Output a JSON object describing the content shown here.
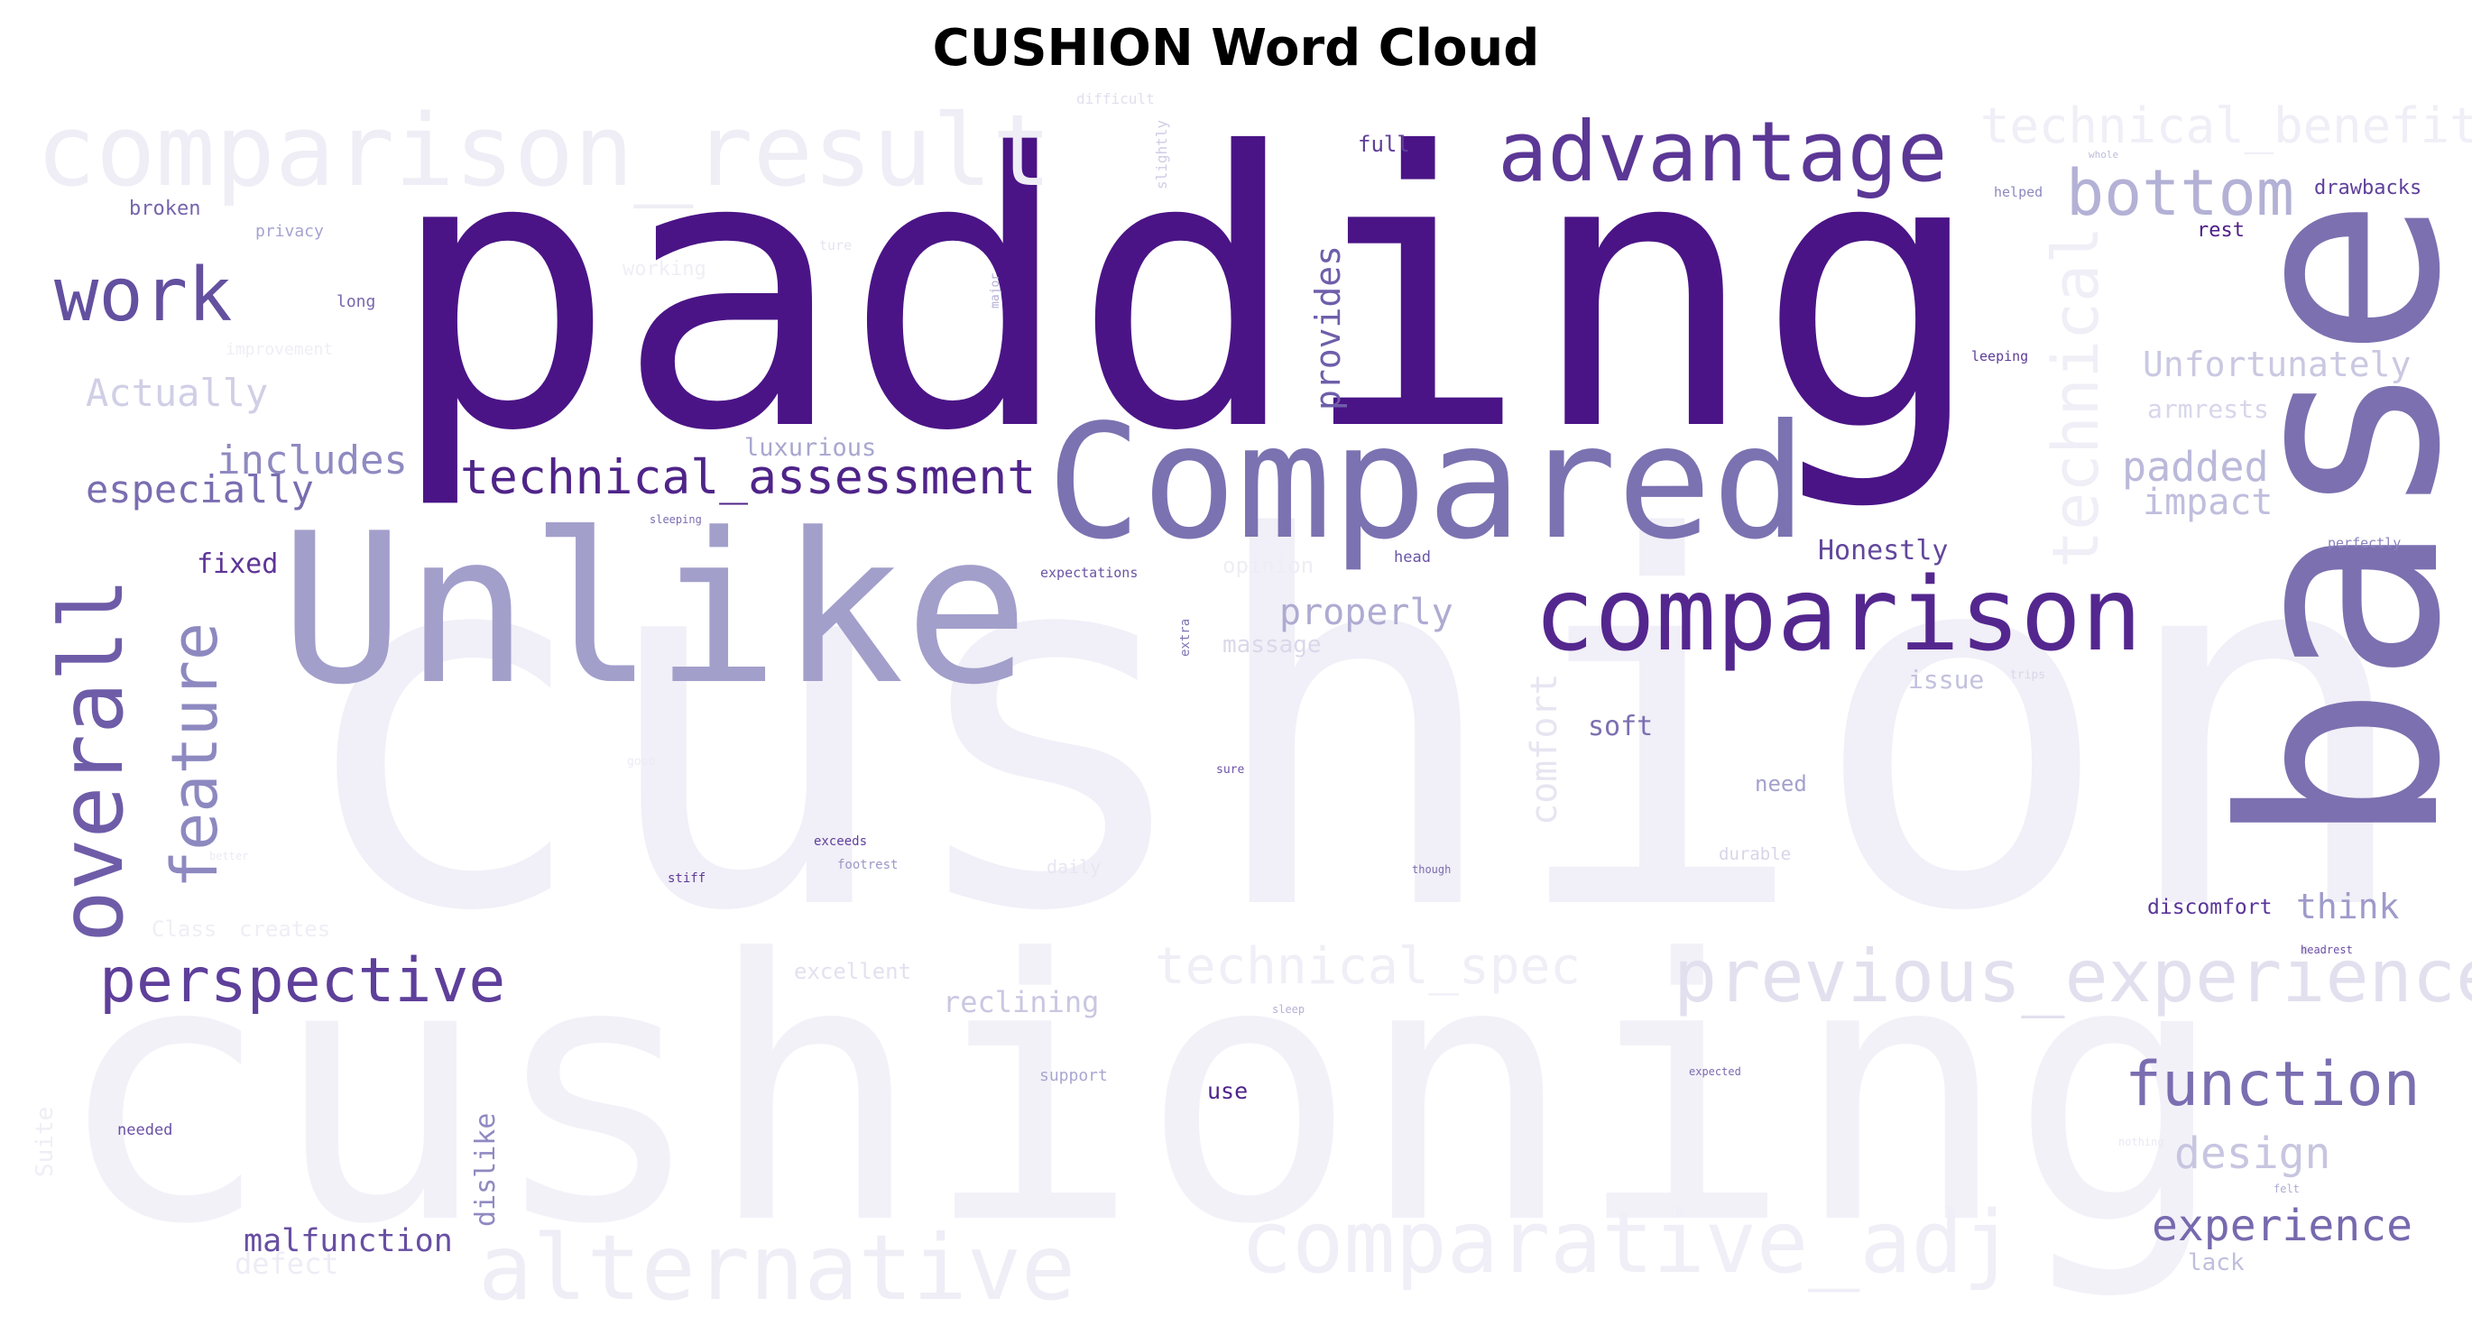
{
  "chart_data": {
    "type": "wordcloud",
    "title": "CUSHION Word Cloud",
    "colormap": "Purples",
    "background": "#ffffff",
    "words": [
      {
        "text": "cushion",
        "weight": 1.0,
        "color": "#f1eff7"
      },
      {
        "text": "cushioning",
        "weight": 0.95,
        "color": "#f3f1f8"
      },
      {
        "text": "padding",
        "weight": 0.9,
        "color": "#4a1486"
      },
      {
        "text": "base",
        "weight": 0.82,
        "color": "#7c70b0"
      },
      {
        "text": "Unlike",
        "weight": 0.62,
        "color": "#a29fcb"
      },
      {
        "text": "Compared",
        "weight": 0.5,
        "color": "#7b72b1"
      },
      {
        "text": "comparison",
        "weight": 0.45,
        "color": "#54278f"
      },
      {
        "text": "comparison_result",
        "weight": 0.42,
        "color": "#efedf5"
      },
      {
        "text": "advantage",
        "weight": 0.38,
        "color": "#5b3796"
      },
      {
        "text": "alternative",
        "weight": 0.34,
        "color": "#efedf5"
      },
      {
        "text": "comparative_adj",
        "weight": 0.32,
        "color": "#f0eef6"
      },
      {
        "text": "technical_benefit",
        "weight": 0.28,
        "color": "#f0eef6"
      },
      {
        "text": "previous_experience",
        "weight": 0.27,
        "color": "#e2e0ee"
      },
      {
        "text": "technical_spec",
        "weight": 0.24,
        "color": "#f0eef6"
      },
      {
        "text": "overall",
        "weight": 0.3,
        "color": "#6e5ca8"
      },
      {
        "text": "feature",
        "weight": 0.26,
        "color": "#8d89c0"
      },
      {
        "text": "technical",
        "weight": 0.24,
        "color": "#f0eef6"
      },
      {
        "text": "work",
        "weight": 0.26,
        "color": "#63509f"
      },
      {
        "text": "bottom",
        "weight": 0.25,
        "color": "#b3b1d5"
      },
      {
        "text": "function",
        "weight": 0.24,
        "color": "#7a6eb1"
      },
      {
        "text": "perspective",
        "weight": 0.24,
        "color": "#5e3f9a"
      },
      {
        "text": "technical_assessment",
        "weight": 0.22,
        "color": "#4f2489"
      },
      {
        "text": "experience",
        "weight": 0.2,
        "color": "#7769ae"
      },
      {
        "text": "design",
        "weight": 0.2,
        "color": "#c7c5e0"
      },
      {
        "text": "padded",
        "weight": 0.19,
        "color": "#bbb9da"
      },
      {
        "text": "impact",
        "weight": 0.18,
        "color": "#c0bedd"
      },
      {
        "text": "Unfortunately",
        "weight": 0.17,
        "color": "#cac8e1"
      },
      {
        "text": "Actually",
        "weight": 0.17,
        "color": "#d0cfe6"
      },
      {
        "text": "includes",
        "weight": 0.17,
        "color": "#8f8ac1"
      },
      {
        "text": "especially",
        "weight": 0.16,
        "color": "#7a6db0"
      },
      {
        "text": "comfort",
        "weight": 0.16,
        "color": "#e7e5f1"
      },
      {
        "text": "provides",
        "weight": 0.16,
        "color": "#6f5eaa"
      },
      {
        "text": "properly",
        "weight": 0.16,
        "color": "#aeabd2"
      },
      {
        "text": "think",
        "weight": 0.15,
        "color": "#9e9bca"
      },
      {
        "text": "reclining",
        "weight": 0.14,
        "color": "#c9c7e1"
      },
      {
        "text": "malfunction",
        "weight": 0.14,
        "color": "#674fa2"
      },
      {
        "text": "defect",
        "weight": 0.13,
        "color": "#eeecf5"
      },
      {
        "text": "luxurious",
        "weight": 0.12,
        "color": "#a8a6cf"
      },
      {
        "text": "armrests",
        "weight": 0.12,
        "color": "#d8d6ea"
      },
      {
        "text": "soft",
        "weight": 0.12,
        "color": "#7c6fb0"
      },
      {
        "text": "Honestly",
        "weight": 0.12,
        "color": "#62479c"
      },
      {
        "text": "dislike",
        "weight": 0.11,
        "color": "#8f8ac1"
      },
      {
        "text": "fixed",
        "weight": 0.11,
        "color": "#5d3597"
      },
      {
        "text": "issue",
        "weight": 0.11,
        "color": "#c3c1de"
      },
      {
        "text": "massage",
        "weight": 0.1,
        "color": "#dad8ea"
      },
      {
        "text": "opinion",
        "weight": 0.1,
        "color": "#eeedf5"
      },
      {
        "text": "need",
        "weight": 0.1,
        "color": "#a4a1cd"
      },
      {
        "text": "discomfort",
        "weight": 0.1,
        "color": "#59359a"
      },
      {
        "text": "lack",
        "weight": 0.1,
        "color": "#c0bedd"
      },
      {
        "text": "full",
        "weight": 0.1,
        "color": "#5e3e9a"
      },
      {
        "text": "rest",
        "weight": 0.1,
        "color": "#4d1e86"
      },
      {
        "text": "drawbacks",
        "weight": 0.1,
        "color": "#5f409b"
      },
      {
        "text": "use",
        "weight": 0.1,
        "color": "#4f2489"
      },
      {
        "text": "excellent",
        "weight": 0.09,
        "color": "#e3e1f0"
      },
      {
        "text": "broken",
        "weight": 0.09,
        "color": "#7564ab"
      },
      {
        "text": "Class",
        "weight": 0.09,
        "color": "#efeef6"
      },
      {
        "text": "creates",
        "weight": 0.09,
        "color": "#efeef6"
      },
      {
        "text": "Suite",
        "weight": 0.09,
        "color": "#efeef6"
      },
      {
        "text": "durable",
        "weight": 0.08,
        "color": "#d7d5e9"
      },
      {
        "text": "daily",
        "weight": 0.08,
        "color": "#e8e6f2"
      },
      {
        "text": "working",
        "weight": 0.08,
        "color": "#efeef6"
      },
      {
        "text": "improvement",
        "weight": 0.07,
        "color": "#efeef6"
      },
      {
        "text": "long",
        "weight": 0.07,
        "color": "#7866ad"
      },
      {
        "text": "privacy",
        "weight": 0.07,
        "color": "#a6a3cf"
      },
      {
        "text": "slightly",
        "weight": 0.07,
        "color": "#cfcde5"
      },
      {
        "text": "difficult",
        "weight": 0.07,
        "color": "#e1dfee"
      },
      {
        "text": "ture",
        "weight": 0.07,
        "color": "#e6e4f1"
      },
      {
        "text": "support",
        "weight": 0.07,
        "color": "#a9a6d0"
      },
      {
        "text": "needed",
        "weight": 0.07,
        "color": "#6a50a3"
      },
      {
        "text": "major",
        "weight": 0.06,
        "color": "#b3b0d5"
      },
      {
        "text": "expectations",
        "weight": 0.06,
        "color": "#6a53a4"
      },
      {
        "text": "helped",
        "weight": 0.06,
        "color": "#8d88bf"
      },
      {
        "text": "leeping",
        "weight": 0.06,
        "color": "#5d3d99"
      },
      {
        "text": "perfectly",
        "weight": 0.06,
        "color": "#8a83bd"
      },
      {
        "text": "head",
        "weight": 0.06,
        "color": "#6b55a5"
      },
      {
        "text": "extra",
        "weight": 0.06,
        "color": "#8075b4"
      },
      {
        "text": "sleeping",
        "weight": 0.05,
        "color": "#7c6db0"
      },
      {
        "text": "exceeds",
        "weight": 0.05,
        "color": "#5e3f9b"
      },
      {
        "text": "footrest",
        "weight": 0.05,
        "color": "#9c98c8"
      },
      {
        "text": "stiff",
        "weight": 0.05,
        "color": "#5c3a98"
      },
      {
        "text": "sure",
        "weight": 0.05,
        "color": "#6c53a4"
      },
      {
        "text": "though",
        "weight": 0.05,
        "color": "#7c6cb0"
      },
      {
        "text": "headrest",
        "weight": 0.05,
        "color": "#6b4fa3"
      },
      {
        "text": "expected",
        "weight": 0.05,
        "color": "#7a6ab0"
      },
      {
        "text": "trips",
        "weight": 0.05,
        "color": "#d9d7ea"
      },
      {
        "text": "whole",
        "weight": 0.04,
        "color": "#bdbbdc"
      },
      {
        "text": "sleep",
        "weight": 0.04,
        "color": "#b4b1d5"
      },
      {
        "text": "felt",
        "weight": 0.04,
        "color": "#aeabd2"
      },
      {
        "text": "nothing",
        "weight": 0.04,
        "color": "#eae8f3"
      },
      {
        "text": "good",
        "weight": 0.04,
        "color": "#eceaf4"
      },
      {
        "text": "better",
        "weight": 0.04,
        "color": "#eceaf4"
      }
    ]
  }
}
